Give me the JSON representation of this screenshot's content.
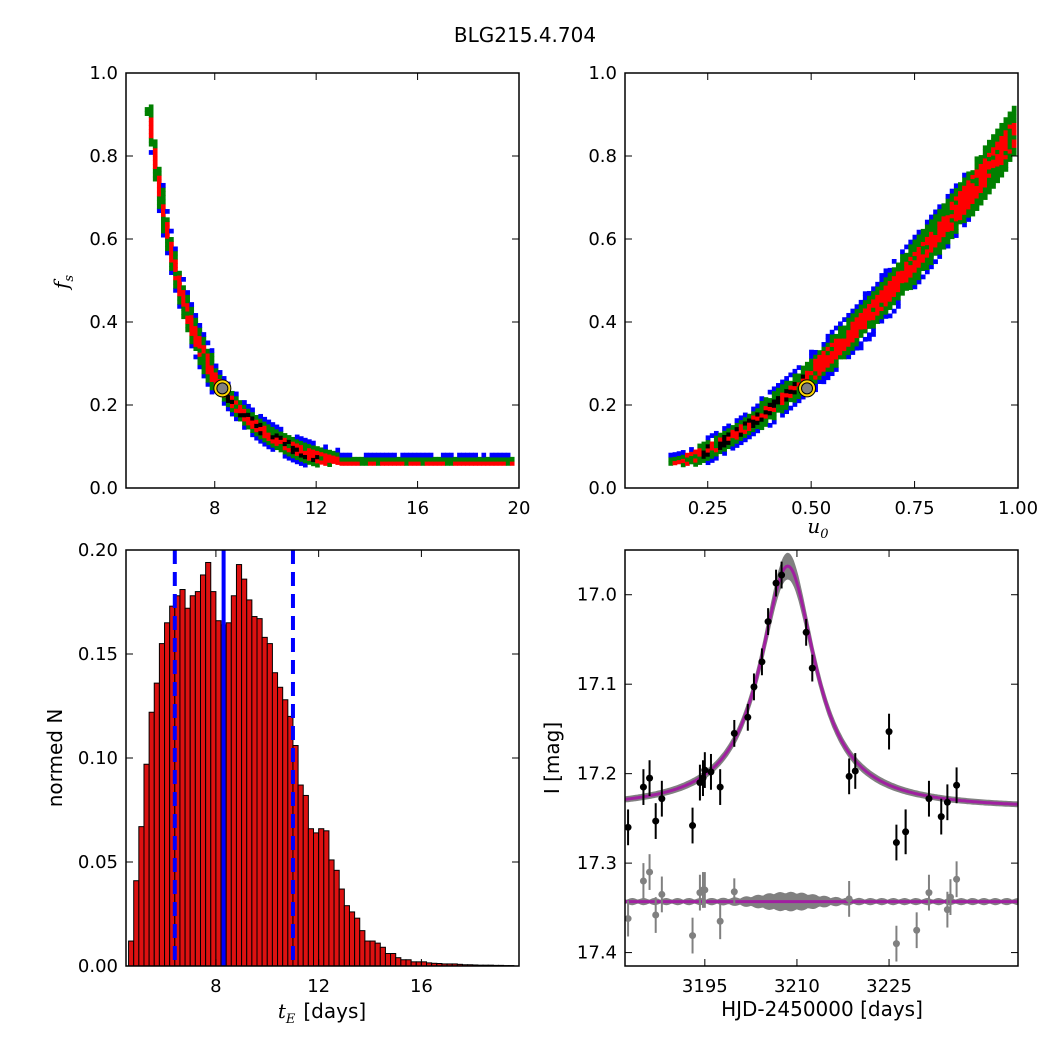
{
  "figure_title": "BLG215.4.704",
  "colors": {
    "outer_3sigma": "#0000ff",
    "mid_2sigma": "#008000",
    "inner_1sigma": "#ff0000",
    "peak": "#000000",
    "best_fit_marker_fill": "#808080",
    "best_fit_marker_edge": "#ffd700",
    "hist_bar": "#dd1111",
    "hist_edge": "#000000",
    "hist_lines": "#0000ff",
    "lc_model": "#a020a0",
    "lc_band": "#808080",
    "lc_points": "#000000",
    "lc_resid_points": "#808080"
  },
  "chart_data": [
    {
      "type": "heatmap",
      "panel": "top-left",
      "title": "",
      "xlabel": "",
      "ylabel_main": "f",
      "ylabel_sub": "s",
      "xlim": [
        4.5,
        20
      ],
      "ylim": [
        0,
        1
      ],
      "xticks": [
        "8",
        "12",
        "16",
        "20"
      ],
      "xtick_values": [
        8,
        12,
        16,
        20
      ],
      "yticks": [
        "0.0",
        "0.2",
        "0.4",
        "0.6",
        "0.8",
        "1.0"
      ],
      "ytick_values": [
        0,
        0.2,
        0.4,
        0.6,
        0.8,
        1.0
      ],
      "description_model": "posterior density of fs vs tE: fs = 0.24*(8.3/tE)^3.1",
      "ridge": [
        [
          5.3,
          0.87
        ],
        [
          5.6,
          0.8
        ],
        [
          6.0,
          0.68
        ],
        [
          6.5,
          0.55
        ],
        [
          7.0,
          0.44
        ],
        [
          7.5,
          0.35
        ],
        [
          8.3,
          0.24
        ],
        [
          9.0,
          0.2
        ],
        [
          10.0,
          0.16
        ],
        [
          11.0,
          0.13
        ],
        [
          12.0,
          0.11
        ],
        [
          13.0,
          0.095
        ],
        [
          14.0,
          0.085
        ],
        [
          16.0,
          0.075
        ],
        [
          19.8,
          0.06
        ]
      ],
      "best_fit": {
        "x": 8.3,
        "y": 0.24
      },
      "grid": false
    },
    {
      "type": "heatmap",
      "panel": "top-right",
      "title": "",
      "xlabel_main": "u",
      "xlabel_sub": "0",
      "ylabel": "",
      "xlim": [
        0.05,
        1.0
      ],
      "ylim": [
        0,
        1
      ],
      "xticks": [
        "0.25",
        "0.50",
        "0.75",
        "1.00"
      ],
      "xtick_values": [
        0.25,
        0.5,
        0.75,
        1.0
      ],
      "yticks": [
        "0.0",
        "0.2",
        "0.4",
        "0.6",
        "0.8",
        "1.0"
      ],
      "ytick_values": [
        0,
        0.2,
        0.4,
        0.6,
        0.8,
        1.0
      ],
      "ridge": [
        [
          0.16,
          0.06
        ],
        [
          0.25,
          0.11
        ],
        [
          0.35,
          0.16
        ],
        [
          0.49,
          0.24
        ],
        [
          0.6,
          0.32
        ],
        [
          0.7,
          0.41
        ],
        [
          0.8,
          0.55
        ],
        [
          0.9,
          0.7
        ],
        [
          1.0,
          0.87
        ]
      ],
      "best_fit": {
        "x": 0.49,
        "y": 0.24
      },
      "grid": false
    },
    {
      "type": "bar",
      "panel": "bottom-left",
      "title": "",
      "xlabel_math": "t",
      "xlabel_sub": "E",
      "xlabel_rest": "[days]",
      "ylabel": "normed N",
      "xlim": [
        4.5,
        19.8
      ],
      "ylim": [
        0,
        0.2
      ],
      "xticks": [
        "8",
        "12",
        "16"
      ],
      "xtick_values": [
        8,
        12,
        16
      ],
      "yticks": [
        "0.00",
        "0.05",
        "0.10",
        "0.15",
        "0.20"
      ],
      "ytick_values": [
        0,
        0.05,
        0.1,
        0.15,
        0.2
      ],
      "bin_width": 0.2,
      "bin_start": 4.6,
      "values": [
        0.012,
        0.041,
        0.067,
        0.097,
        0.122,
        0.136,
        0.155,
        0.165,
        0.173,
        0.178,
        0.181,
        0.172,
        0.178,
        0.18,
        0.188,
        0.194,
        0.18,
        0.166,
        0.164,
        0.165,
        0.178,
        0.193,
        0.186,
        0.176,
        0.168,
        0.167,
        0.158,
        0.155,
        0.141,
        0.134,
        0.128,
        0.12,
        0.106,
        0.087,
        0.082,
        0.066,
        0.064,
        0.066,
        0.065,
        0.051,
        0.046,
        0.037,
        0.029,
        0.026,
        0.023,
        0.017,
        0.012,
        0.012,
        0.011,
        0.009,
        0.006,
        0.006,
        0.004,
        0.003,
        0.003,
        0.002,
        0.002,
        0.002,
        0.0015,
        0.0013,
        0.0012,
        0.001,
        0.001,
        0.001,
        0.0008,
        0.0006,
        0.0006,
        0.0005,
        0.0004,
        0.0004,
        0.0004,
        0.0003,
        0.0003,
        0.0002,
        0.0002
      ],
      "median_line": 8.3,
      "lower_dashed": 6.4,
      "upper_dashed": 11.0,
      "grid": false
    },
    {
      "type": "scatter",
      "panel": "bottom-right",
      "title": "",
      "xlabel": "HJD-2450000 [days]",
      "ylabel": "I [mag]",
      "xlim": [
        3182,
        3246
      ],
      "ylim": [
        17.415,
        16.95
      ],
      "inverted_y": true,
      "xticks": [
        "3195",
        "3210",
        "3225"
      ],
      "xtick_values": [
        3195,
        3210,
        3225
      ],
      "yticks": [
        "17.0",
        "17.1",
        "17.2",
        "17.3",
        "17.4"
      ],
      "ytick_values": [
        17.0,
        17.1,
        17.2,
        17.3,
        17.4
      ],
      "model": {
        "t0": 3208.5,
        "baseline": 17.24,
        "peak": 16.968,
        "width_days": 5.5
      },
      "residual_baseline": 17.343,
      "points": [
        {
          "x": 3182.5,
          "y": 17.26,
          "err": 0.02
        },
        {
          "x": 3185.0,
          "y": 17.215,
          "err": 0.02
        },
        {
          "x": 3186.0,
          "y": 17.205,
          "err": 0.02
        },
        {
          "x": 3187.0,
          "y": 17.253,
          "err": 0.02
        },
        {
          "x": 3188.0,
          "y": 17.228,
          "err": 0.02
        },
        {
          "x": 3193.0,
          "y": 17.258,
          "err": 0.02
        },
        {
          "x": 3194.2,
          "y": 17.21,
          "err": 0.02
        },
        {
          "x": 3194.7,
          "y": 17.205,
          "err": 0.02
        },
        {
          "x": 3195.0,
          "y": 17.196,
          "err": 0.02
        },
        {
          "x": 3196.0,
          "y": 17.198,
          "err": 0.02
        },
        {
          "x": 3197.5,
          "y": 17.215,
          "err": 0.02
        },
        {
          "x": 3199.8,
          "y": 17.155,
          "err": 0.015
        },
        {
          "x": 3202.0,
          "y": 17.137,
          "err": 0.015
        },
        {
          "x": 3203.0,
          "y": 17.103,
          "err": 0.015
        },
        {
          "x": 3204.3,
          "y": 17.075,
          "err": 0.015
        },
        {
          "x": 3205.3,
          "y": 17.03,
          "err": 0.015
        },
        {
          "x": 3206.6,
          "y": 16.987,
          "err": 0.015
        },
        {
          "x": 3207.5,
          "y": 16.978,
          "err": 0.015
        },
        {
          "x": 3211.5,
          "y": 17.042,
          "err": 0.015
        },
        {
          "x": 3212.5,
          "y": 17.082,
          "err": 0.015
        },
        {
          "x": 3218.5,
          "y": 17.203,
          "err": 0.02
        },
        {
          "x": 3219.5,
          "y": 17.197,
          "err": 0.02
        },
        {
          "x": 3225.0,
          "y": 17.153,
          "err": 0.02
        },
        {
          "x": 3226.2,
          "y": 17.277,
          "err": 0.02
        },
        {
          "x": 3227.7,
          "y": 17.265,
          "err": 0.025
        },
        {
          "x": 3231.5,
          "y": 17.228,
          "err": 0.02
        },
        {
          "x": 3233.5,
          "y": 17.248,
          "err": 0.02
        },
        {
          "x": 3234.5,
          "y": 17.232,
          "err": 0.02
        },
        {
          "x": 3236.0,
          "y": 17.213,
          "err": 0.02
        }
      ],
      "residual_points": [
        {
          "x": 3182.5,
          "y": 17.362,
          "err": 0.02
        },
        {
          "x": 3185.0,
          "y": 17.32,
          "err": 0.02
        },
        {
          "x": 3186.0,
          "y": 17.31,
          "err": 0.02
        },
        {
          "x": 3187.0,
          "y": 17.358,
          "err": 0.02
        },
        {
          "x": 3188.0,
          "y": 17.335,
          "err": 0.02
        },
        {
          "x": 3193.0,
          "y": 17.381,
          "err": 0.02
        },
        {
          "x": 3194.2,
          "y": 17.333,
          "err": 0.02
        },
        {
          "x": 3194.7,
          "y": 17.33,
          "err": 0.02
        },
        {
          "x": 3195.0,
          "y": 17.33,
          "err": 0.02
        },
        {
          "x": 3197.5,
          "y": 17.365,
          "err": 0.02
        },
        {
          "x": 3199.8,
          "y": 17.332,
          "err": 0.015
        },
        {
          "x": 3218.5,
          "y": 17.34,
          "err": 0.02
        },
        {
          "x": 3226.2,
          "y": 17.39,
          "err": 0.02
        },
        {
          "x": 3227.7,
          "y": 17.265,
          "err": 0.025
        },
        {
          "x": 3229.5,
          "y": 17.375,
          "err": 0.02
        },
        {
          "x": 3231.5,
          "y": 17.333,
          "err": 0.02
        },
        {
          "x": 3234.5,
          "y": 17.352,
          "err": 0.02
        },
        {
          "x": 3235.0,
          "y": 17.338,
          "err": 0.02
        },
        {
          "x": 3236.0,
          "y": 17.318,
          "err": 0.02
        }
      ],
      "grid": false
    }
  ]
}
